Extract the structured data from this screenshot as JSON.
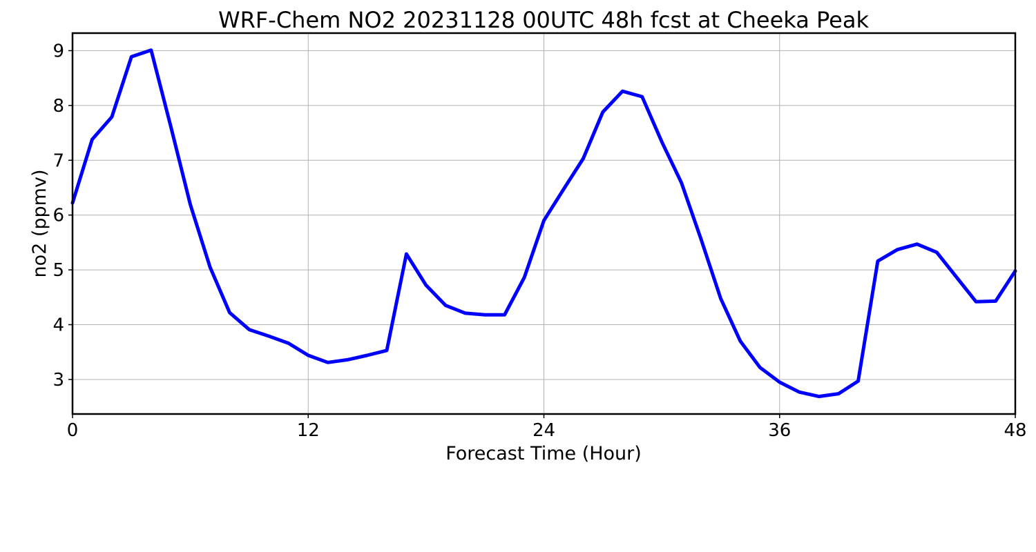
{
  "chart_data": {
    "type": "line",
    "title": "WRF-Chem NO2  20231128 00UTC 48h fcst at Cheeka Peak",
    "xlabel": "Forecast Time (Hour)",
    "ylabel": "no2  (ppmv)",
    "xlim": [
      0,
      48
    ],
    "ylim": [
      2.37,
      9.32
    ],
    "xticks": [
      0,
      12,
      24,
      36,
      48
    ],
    "yticks": [
      3,
      4,
      5,
      6,
      7,
      8,
      9
    ],
    "grid": true,
    "legend": "none",
    "series": [
      {
        "color": "#0000ff",
        "x": [
          0,
          1,
          2,
          3,
          4,
          5,
          6,
          7,
          8,
          9,
          10,
          11,
          12,
          13,
          14,
          15,
          16,
          17,
          18,
          19,
          20,
          21,
          22,
          23,
          24,
          25,
          26,
          27,
          28,
          29,
          30,
          31,
          32,
          33,
          34,
          35,
          36,
          37,
          38,
          39,
          40,
          41,
          42,
          43,
          44,
          45,
          46,
          47,
          48
        ],
        "y": [
          6.22,
          7.38,
          7.79,
          8.89,
          9.01,
          7.62,
          6.19,
          5.05,
          4.22,
          3.91,
          3.79,
          3.66,
          3.44,
          3.31,
          3.36,
          3.44,
          3.53,
          5.29,
          4.72,
          4.35,
          4.21,
          4.18,
          4.18,
          4.86,
          5.9,
          6.47,
          7.03,
          7.88,
          8.26,
          8.16,
          7.34,
          6.59,
          5.56,
          4.48,
          3.7,
          3.22,
          2.95,
          2.77,
          2.69,
          2.74,
          2.97,
          5.16,
          5.37,
          5.47,
          5.32,
          4.87,
          4.42,
          4.43,
          4.98
        ]
      }
    ]
  }
}
